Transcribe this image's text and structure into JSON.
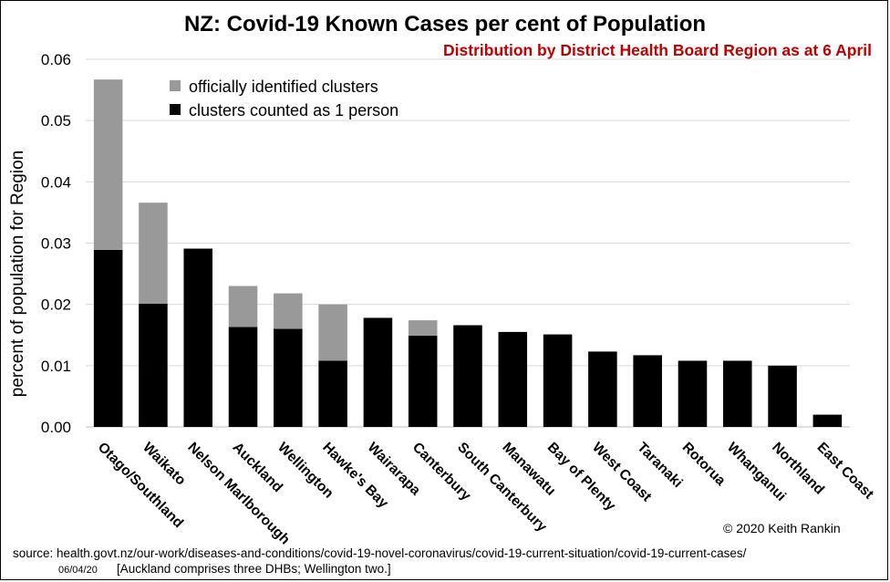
{
  "chart_data": {
    "type": "bar",
    "stacked": true,
    "title": "NZ: Covid-19 Known Cases per cent of Population",
    "subtitle": "Distribution  by District Health Board Region as at 6 April",
    "xlabel": "",
    "ylabel": "percent of population for Region",
    "ylim": [
      0,
      0.06
    ],
    "yticks": [
      "0.00",
      "0.01",
      "0.02",
      "0.03",
      "0.04",
      "0.05",
      "0.06"
    ],
    "grid": true,
    "legend_position": "top-left",
    "categories": [
      "Otago/Southland",
      "Waikato",
      "Nelson Marlborough",
      "Auckland",
      "Wellington",
      "Hawke's Bay",
      "Wairarapa",
      "Canterbury",
      "South Canterbury",
      "Manawatu",
      "Bay of Plenty",
      "West Coast",
      "Taranaki",
      "Rotorua",
      "Whanganui",
      "Northland",
      "East Coast"
    ],
    "series": [
      {
        "name": "clusters counted as 1 person",
        "color": "#000000",
        "values": [
          0.0289,
          0.0201,
          0.0291,
          0.0163,
          0.016,
          0.0108,
          0.0178,
          0.0149,
          0.0166,
          0.0155,
          0.0151,
          0.0123,
          0.0117,
          0.0108,
          0.0108,
          0.01,
          0.002
        ]
      },
      {
        "name": "officially identified clusters",
        "color": "#999999",
        "values": [
          0.0278,
          0.0165,
          0.0,
          0.0067,
          0.0058,
          0.0092,
          0.0,
          0.0025,
          0.0,
          0.0,
          0.0,
          0.0,
          0.0,
          0.0,
          0.0,
          0.0,
          0.0
        ]
      }
    ],
    "legend_order": [
      "officially identified clusters",
      "clusters counted as 1 person"
    ]
  },
  "copyright": "© 2020  Keith Rankin",
  "source_line": "source: health.govt.nz/our-work/diseases-and-conditions/covid-19-novel-coronavirus/covid-19-current-situation/covid-19-current-cases/",
  "date_line": "06/04/20",
  "note_line": "[Auckland comprises three DHBs; Wellington two.]"
}
